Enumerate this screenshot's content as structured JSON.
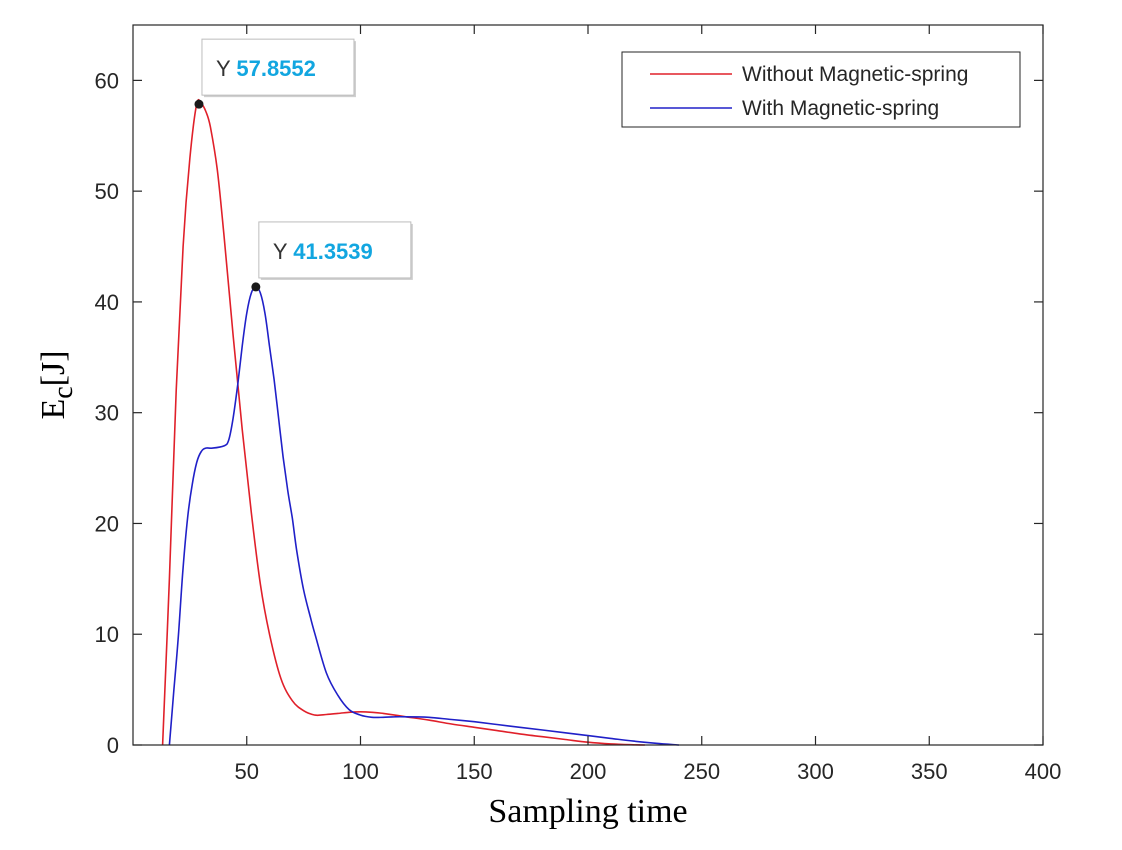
{
  "chart_data": {
    "type": "line",
    "title": "",
    "xlabel": "Sampling time",
    "ylabel_main": "E",
    "ylabel_sub": "c",
    "ylabel_unit": "[J]",
    "xlim": [
      0,
      400
    ],
    "ylim": [
      0,
      65
    ],
    "xticks": [
      50,
      100,
      150,
      200,
      250,
      300,
      350,
      400
    ],
    "yticks": [
      0,
      10,
      20,
      30,
      40,
      50,
      60
    ],
    "grid": false,
    "legend_position": "top-right",
    "series": [
      {
        "name": "Without Magnetic-spring",
        "color": "#e0202a",
        "x": [
          13,
          16,
          19,
          22,
          25,
          28,
          30,
          32,
          34,
          37,
          40,
          44,
          48,
          52,
          56,
          60,
          65,
          70,
          75,
          80,
          85,
          90,
          95,
          100,
          105,
          110,
          120,
          130,
          140,
          150,
          160,
          170,
          180,
          190,
          200,
          210,
          220,
          225
        ],
        "y": [
          0,
          15,
          32,
          45,
          53,
          57.86,
          57.9,
          57.2,
          55.8,
          52,
          46,
          37,
          28.5,
          21,
          14.5,
          10,
          6,
          4,
          3.1,
          2.7,
          2.75,
          2.85,
          2.95,
          3.0,
          2.95,
          2.85,
          2.55,
          2.25,
          1.9,
          1.6,
          1.3,
          1.0,
          0.75,
          0.5,
          0.25,
          0.1,
          0.02,
          0
        ]
      },
      {
        "name": "With Magnetic-spring",
        "color": "#2020c8",
        "x": [
          16,
          18,
          20,
          22,
          24,
          26,
          28,
          30,
          32,
          35,
          40,
          42,
          44,
          46,
          48,
          50,
          52,
          54,
          56,
          58,
          60,
          62,
          64,
          66,
          68,
          70,
          72,
          75,
          78,
          80,
          85,
          90,
          95,
          100,
          105,
          110,
          115,
          120,
          130,
          140,
          150,
          160,
          170,
          180,
          190,
          200,
          210,
          220,
          230,
          240
        ],
        "y": [
          0,
          5,
          10,
          16,
          20.5,
          23.5,
          25.5,
          26.5,
          26.8,
          26.8,
          27,
          27.5,
          29.5,
          32.5,
          36,
          39,
          40.8,
          41.35,
          40.8,
          39,
          36,
          33,
          29.5,
          26,
          23,
          20.5,
          17.5,
          14,
          11.5,
          10,
          6.5,
          4.5,
          3.2,
          2.7,
          2.5,
          2.5,
          2.55,
          2.55,
          2.5,
          2.3,
          2.1,
          1.85,
          1.6,
          1.35,
          1.1,
          0.85,
          0.6,
          0.35,
          0.15,
          0
        ]
      }
    ],
    "datatips": [
      {
        "prefix": "Y",
        "value": "57.8552",
        "x": 29,
        "y": 57.8552
      },
      {
        "prefix": "Y",
        "value": "41.3539",
        "x": 54,
        "y": 41.3539
      }
    ]
  }
}
